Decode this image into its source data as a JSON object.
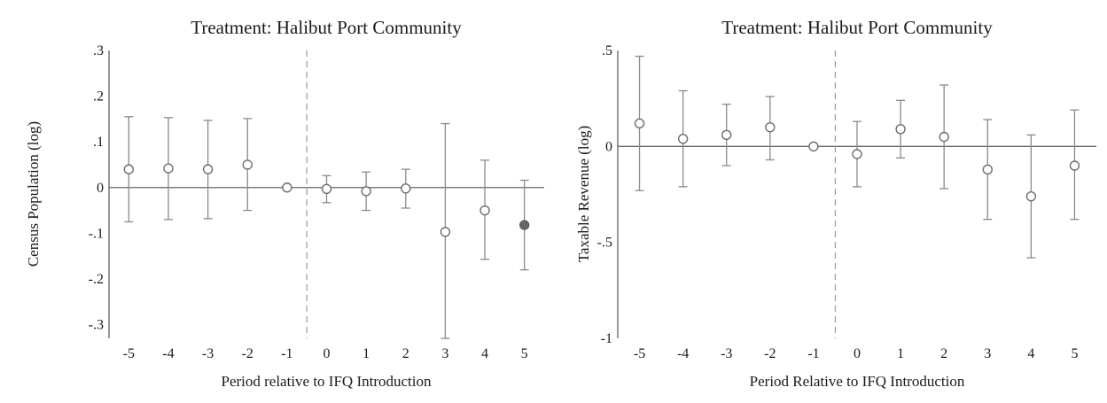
{
  "chart_data": [
    {
      "type": "scatter",
      "title": "Treatment: Halibut Port Community",
      "xlabel": "Period relative to IFQ Introduction",
      "ylabel": "Census Population (log)",
      "xlim": [
        -5.5,
        5.5
      ],
      "ylim": [
        -0.33,
        0.3
      ],
      "x_ticks": [
        -5,
        -4,
        -3,
        -2,
        -1,
        0,
        1,
        2,
        3,
        4,
        5
      ],
      "x_tick_labels": [
        "-5",
        "-4",
        "-3",
        "-2",
        "-1",
        "0",
        "1",
        "2",
        "3",
        "4",
        "5"
      ],
      "y_ticks": [
        0.3,
        0.2,
        0.1,
        0,
        -0.1,
        -0.2,
        -0.3
      ],
      "y_tick_labels": [
        ".3",
        ".2",
        ".1",
        "0",
        "-.1",
        "-.2",
        "-.3"
      ],
      "reference_line_y": 0,
      "event_line_x": -0.5,
      "points": [
        {
          "x": -5,
          "y": 0.04,
          "lo": -0.075,
          "hi": 0.155,
          "filled": false
        },
        {
          "x": -4,
          "y": 0.042,
          "lo": -0.07,
          "hi": 0.153,
          "filled": false
        },
        {
          "x": -3,
          "y": 0.04,
          "lo": -0.068,
          "hi": 0.147,
          "filled": false
        },
        {
          "x": -2,
          "y": 0.05,
          "lo": -0.05,
          "hi": 0.151,
          "filled": false
        },
        {
          "x": -1,
          "y": 0.0,
          "lo": null,
          "hi": null,
          "filled": false
        },
        {
          "x": 0,
          "y": -0.003,
          "lo": -0.033,
          "hi": 0.026,
          "filled": false
        },
        {
          "x": 1,
          "y": -0.008,
          "lo": -0.05,
          "hi": 0.034,
          "filled": false
        },
        {
          "x": 2,
          "y": -0.002,
          "lo": -0.045,
          "hi": 0.04,
          "filled": false
        },
        {
          "x": 3,
          "y": -0.097,
          "lo": -0.33,
          "hi": 0.14,
          "filled": false
        },
        {
          "x": 4,
          "y": -0.05,
          "lo": -0.157,
          "hi": 0.06,
          "filled": false
        },
        {
          "x": 5,
          "y": -0.082,
          "lo": -0.18,
          "hi": 0.016,
          "filled": true
        }
      ]
    },
    {
      "type": "scatter",
      "title": "Treatment: Halibut Port Community",
      "xlabel": "Period Relative to IFQ Introduction",
      "ylabel": "Taxable Revenue (log)",
      "xlim": [
        -5.5,
        5.5
      ],
      "ylim": [
        -1.0,
        0.5
      ],
      "x_ticks": [
        -5,
        -4,
        -3,
        -2,
        -1,
        0,
        1,
        2,
        3,
        4,
        5
      ],
      "x_tick_labels": [
        "-5",
        "-4",
        "-3",
        "-2",
        "-1",
        "0",
        "1",
        "2",
        "3",
        "4",
        "5"
      ],
      "y_ticks": [
        0.5,
        0,
        -0.5,
        -1
      ],
      "y_tick_labels": [
        ".5",
        "0",
        "-.5",
        "-1"
      ],
      "reference_line_y": 0,
      "event_line_x": -0.5,
      "points": [
        {
          "x": -5,
          "y": 0.12,
          "lo": -0.23,
          "hi": 0.47,
          "filled": false
        },
        {
          "x": -4,
          "y": 0.04,
          "lo": -0.21,
          "hi": 0.29,
          "filled": false
        },
        {
          "x": -3,
          "y": 0.06,
          "lo": -0.1,
          "hi": 0.22,
          "filled": false
        },
        {
          "x": -2,
          "y": 0.1,
          "lo": -0.07,
          "hi": 0.26,
          "filled": false
        },
        {
          "x": -1,
          "y": 0.0,
          "lo": null,
          "hi": null,
          "filled": false
        },
        {
          "x": 0,
          "y": -0.04,
          "lo": -0.21,
          "hi": 0.13,
          "filled": false
        },
        {
          "x": 1,
          "y": 0.09,
          "lo": -0.06,
          "hi": 0.24,
          "filled": false
        },
        {
          "x": 2,
          "y": 0.05,
          "lo": -0.22,
          "hi": 0.32,
          "filled": false
        },
        {
          "x": 3,
          "y": -0.12,
          "lo": -0.38,
          "hi": 0.14,
          "filled": false
        },
        {
          "x": 4,
          "y": -0.26,
          "lo": -0.58,
          "hi": 0.06,
          "filled": false
        },
        {
          "x": 5,
          "y": -0.1,
          "lo": -0.38,
          "hi": 0.19,
          "filled": false
        }
      ]
    }
  ]
}
